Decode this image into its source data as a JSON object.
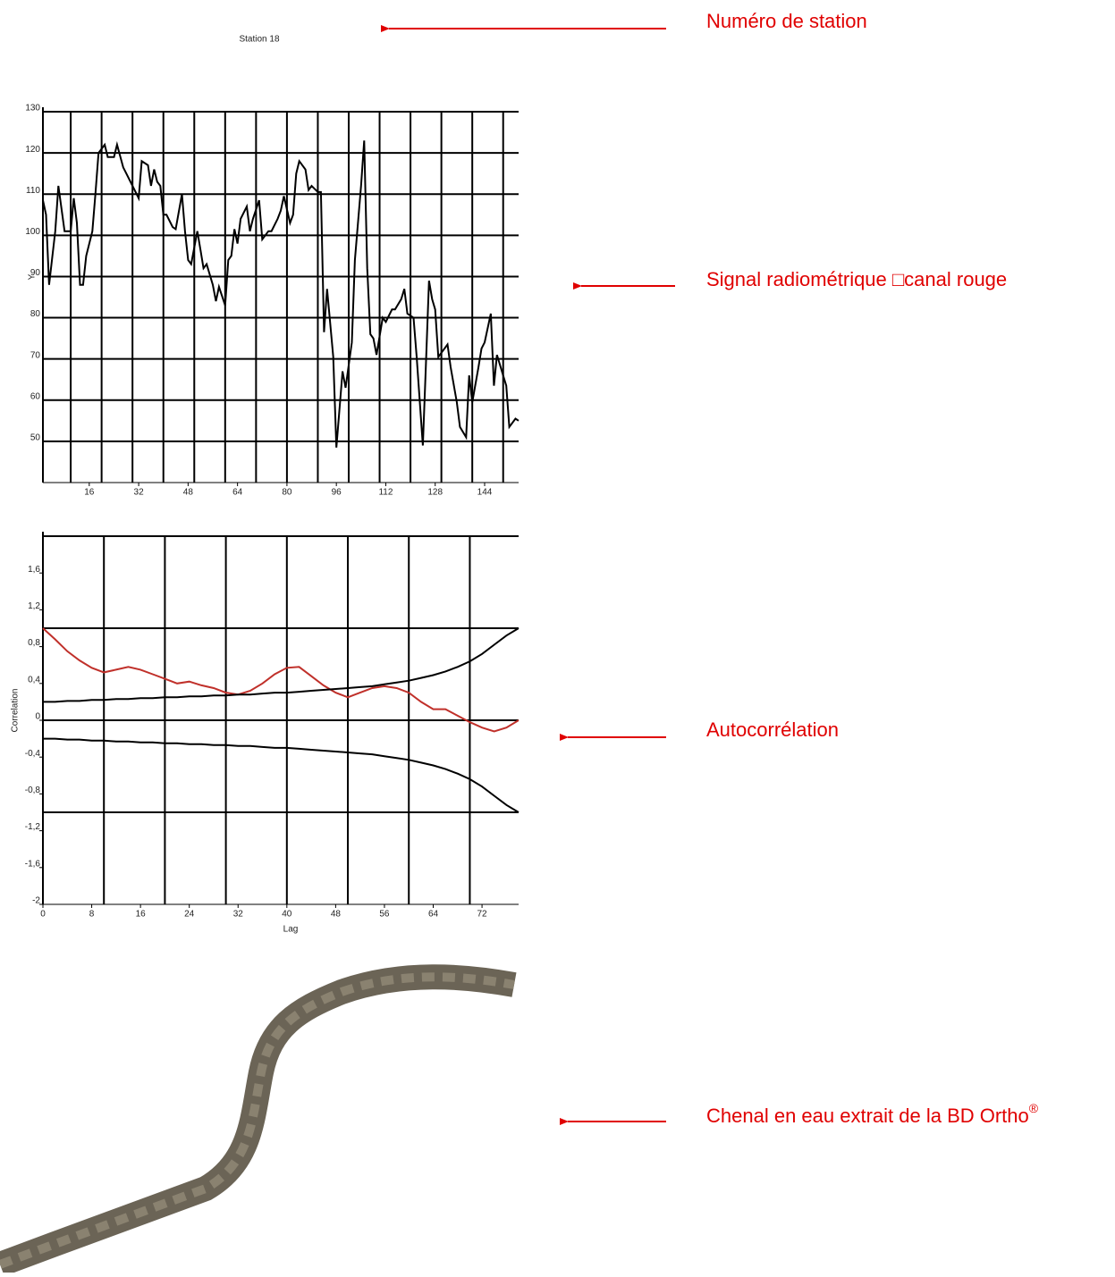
{
  "chart_data": [
    {
      "type": "line",
      "title": "Station 18",
      "ylabel": "Y",
      "xlim": [
        1,
        155
      ],
      "ylim": [
        40,
        130
      ],
      "xticks": [
        16,
        32,
        48,
        64,
        80,
        96,
        112,
        128,
        144
      ],
      "yticks": [
        50,
        60,
        70,
        80,
        90,
        100,
        110,
        120,
        130
      ],
      "xgrid": [
        10,
        20,
        30,
        40,
        50,
        60,
        70,
        80,
        90,
        100,
        110,
        120,
        130,
        140,
        150
      ],
      "grid": true,
      "x": [
        1,
        2,
        3,
        5,
        6,
        8,
        10,
        11,
        12,
        13,
        14,
        15,
        17,
        18,
        19,
        21,
        22,
        24,
        25,
        27,
        28,
        30,
        32,
        33,
        35,
        36,
        37,
        38,
        39,
        40,
        41,
        43,
        44,
        46,
        47,
        48,
        49,
        51,
        52,
        53,
        54,
        56,
        57,
        58,
        60,
        61,
        62,
        63,
        64,
        65,
        67,
        68,
        69,
        71,
        72,
        74,
        75,
        77,
        78,
        79,
        81,
        82,
        83,
        84,
        86,
        87,
        88,
        90,
        91,
        92,
        93,
        95,
        96,
        98,
        99,
        101,
        102,
        104,
        105,
        106,
        107,
        108,
        109,
        111,
        112,
        114,
        115,
        117,
        118,
        119,
        121,
        122,
        124,
        125,
        126,
        127,
        128,
        129,
        130,
        132,
        133,
        135,
        136,
        138,
        139,
        140,
        142,
        143,
        144,
        146,
        147,
        148,
        150,
        151,
        152,
        154,
        155
      ],
      "series": [
        {
          "color": "#000000",
          "values": [
            108.5,
            105,
            88,
            101,
            112,
            101,
            101,
            109,
            103,
            88,
            88,
            95,
            101,
            110,
            120,
            122,
            119,
            119,
            122,
            116.5,
            115,
            112,
            109,
            118,
            117,
            112,
            116,
            113,
            112,
            105,
            105,
            102,
            101.5,
            110,
            101,
            94,
            93,
            101,
            96.5,
            92,
            93,
            88,
            84,
            87.5,
            83,
            94,
            95,
            101.5,
            98,
            104,
            107,
            101,
            104,
            108.5,
            99,
            101,
            101,
            104,
            106,
            109.5,
            103,
            105,
            115,
            118,
            116,
            111,
            112,
            110.5,
            110.5,
            76.5,
            87,
            70.5,
            48.5,
            67,
            63,
            74,
            94,
            112,
            123,
            92,
            76,
            75,
            71,
            80,
            79,
            82,
            82,
            84.5,
            87,
            81,
            80,
            70.5,
            49,
            69,
            89,
            84.5,
            82,
            70.5,
            71.5,
            73.5,
            68,
            59.5,
            53.5,
            51,
            66,
            59.5,
            68,
            72.5,
            74,
            81,
            63.5,
            71,
            66,
            63.5,
            53.5,
            55.5,
            55
          ]
        }
      ]
    },
    {
      "type": "line",
      "xlabel": "Lag",
      "ylabel": "Correlation",
      "xlim": [
        0,
        78
      ],
      "ylim": [
        -2,
        2
      ],
      "xticks": [
        0,
        8,
        16,
        24,
        32,
        40,
        48,
        56,
        64,
        72
      ],
      "yticks": [
        -2,
        {
          "value": -1.6,
          "label": "-1,6"
        },
        {
          "value": -1.2,
          "label": "-1,2"
        },
        {
          "value": -0.8,
          "label": "-0,8"
        },
        {
          "value": -0.4,
          "label": "-0,4"
        },
        0,
        {
          "value": 0.4,
          "label": "0,4"
        },
        {
          "value": 0.8,
          "label": "0,8"
        },
        {
          "value": 1.2,
          "label": "1,2"
        },
        {
          "value": 1.6,
          "label": "1,6"
        }
      ],
      "xgrid": [
        10,
        20,
        30,
        40,
        50,
        60,
        70
      ],
      "ygrid": [
        1,
        0,
        -1
      ],
      "x": [
        0,
        2,
        4,
        6,
        8,
        10,
        12,
        14,
        16,
        18,
        20,
        22,
        24,
        26,
        28,
        30,
        32,
        34,
        36,
        38,
        40,
        42,
        44,
        46,
        48,
        50,
        52,
        54,
        56,
        58,
        60,
        62,
        64,
        66,
        68,
        70,
        72,
        74,
        76,
        78
      ],
      "series": [
        {
          "color": "#c0302a",
          "values": [
            1.0,
            0.88,
            0.75,
            0.65,
            0.57,
            0.52,
            0.55,
            0.58,
            0.55,
            0.5,
            0.45,
            0.4,
            0.42,
            0.38,
            0.35,
            0.3,
            0.28,
            0.32,
            0.4,
            0.5,
            0.57,
            0.58,
            0.48,
            0.38,
            0.3,
            0.25,
            0.3,
            0.35,
            0.37,
            0.35,
            0.3,
            0.2,
            0.12,
            0.12,
            0.05,
            -0.02,
            -0.08,
            -0.12,
            -0.08,
            0
          ]
        },
        {
          "color": "#000000",
          "values": [
            0.2,
            0.2,
            0.21,
            0.21,
            0.22,
            0.22,
            0.23,
            0.23,
            0.24,
            0.24,
            0.25,
            0.25,
            0.26,
            0.26,
            0.27,
            0.27,
            0.28,
            0.28,
            0.29,
            0.3,
            0.3,
            0.31,
            0.32,
            0.33,
            0.34,
            0.35,
            0.36,
            0.37,
            0.39,
            0.41,
            0.43,
            0.46,
            0.49,
            0.53,
            0.58,
            0.64,
            0.72,
            0.82,
            0.92,
            1.0
          ]
        },
        {
          "color": "#000000",
          "values": [
            -0.2,
            -0.2,
            -0.21,
            -0.21,
            -0.22,
            -0.22,
            -0.23,
            -0.23,
            -0.24,
            -0.24,
            -0.25,
            -0.25,
            -0.26,
            -0.26,
            -0.27,
            -0.27,
            -0.28,
            -0.28,
            -0.29,
            -0.3,
            -0.3,
            -0.31,
            -0.32,
            -0.33,
            -0.34,
            -0.35,
            -0.36,
            -0.37,
            -0.39,
            -0.41,
            -0.43,
            -0.46,
            -0.49,
            -0.53,
            -0.58,
            -0.64,
            -0.72,
            -0.82,
            -0.92,
            -1.0
          ]
        }
      ]
    }
  ],
  "annotations": [
    {
      "text": "Numéro de station"
    },
    {
      "text": "Signal radiométrique □canal rouge"
    },
    {
      "text": "Autocorrélation"
    },
    {
      "text": "Chenal en eau extrait de la BD Ortho",
      "sup": "®"
    }
  ]
}
